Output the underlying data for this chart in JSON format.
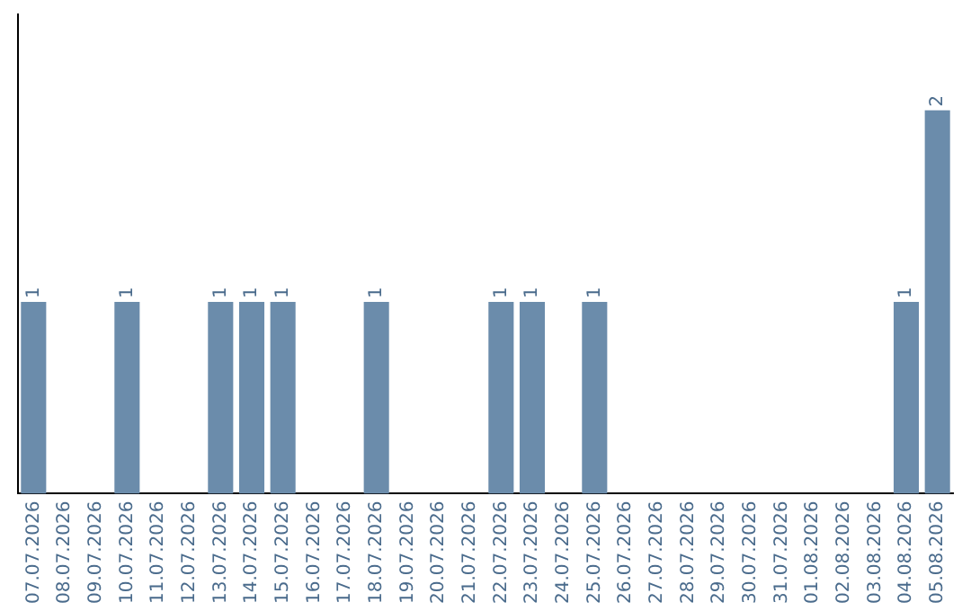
{
  "chart_data": {
    "type": "bar",
    "categories": [
      "07.07.2026",
      "08.07.2026",
      "09.07.2026",
      "10.07.2026",
      "11.07.2026",
      "12.07.2026",
      "13.07.2026",
      "14.07.2026",
      "15.07.2026",
      "16.07.2026",
      "17.07.2026",
      "18.07.2026",
      "19.07.2026",
      "20.07.2026",
      "21.07.2026",
      "22.07.2026",
      "23.07.2026",
      "24.07.2026",
      "25.07.2026",
      "26.07.2026",
      "27.07.2026",
      "28.07.2026",
      "29.07.2026",
      "30.07.2026",
      "31.07.2026",
      "01.08.2026",
      "02.08.2026",
      "03.08.2026",
      "04.08.2026",
      "05.08.2026"
    ],
    "values": [
      1,
      0,
      0,
      1,
      0,
      0,
      1,
      1,
      1,
      0,
      0,
      1,
      0,
      0,
      0,
      1,
      1,
      0,
      1,
      0,
      0,
      0,
      0,
      0,
      0,
      0,
      0,
      0,
      1,
      2
    ],
    "value_labels": [
      "1",
      null,
      null,
      "1",
      null,
      null,
      "1",
      "1",
      "1",
      null,
      null,
      "1",
      null,
      null,
      null,
      "1",
      "1",
      null,
      "1",
      null,
      null,
      null,
      null,
      null,
      null,
      null,
      null,
      null,
      "1",
      "2"
    ],
    "color": "#6b8cab",
    "grid": false,
    "legend": false,
    "tick_labels": "x"
  }
}
